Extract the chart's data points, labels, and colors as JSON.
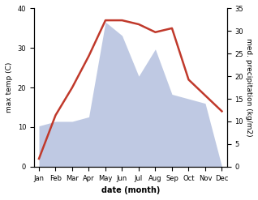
{
  "months": [
    "Jan",
    "Feb",
    "Mar",
    "Apr",
    "May",
    "Jun",
    "Jul",
    "Aug",
    "Sep",
    "Oct",
    "Nov",
    "Dec"
  ],
  "temperature": [
    2,
    13,
    20,
    28,
    37,
    37,
    36,
    34,
    35,
    22,
    18,
    14
  ],
  "precipitation_kg": [
    9,
    10,
    10,
    11,
    32,
    29,
    20,
    26,
    16,
    15,
    14,
    0
  ],
  "temp_color": "#c0392b",
  "precip_fill_color": "#b8c4e0",
  "xlabel": "date (month)",
  "ylabel_left": "max temp (C)",
  "ylabel_right": "med. precipitation (kg/m2)",
  "ylim_left": [
    0,
    40
  ],
  "ylim_right": [
    0,
    35
  ],
  "yticks_left": [
    0,
    10,
    20,
    30,
    40
  ],
  "yticks_right": [
    0,
    5,
    10,
    15,
    20,
    25,
    30,
    35
  ],
  "background_color": "#ffffff",
  "temp_linewidth": 1.8,
  "xlabel_fontsize": 7,
  "ylabel_fontsize": 6.5,
  "tick_fontsize": 6
}
